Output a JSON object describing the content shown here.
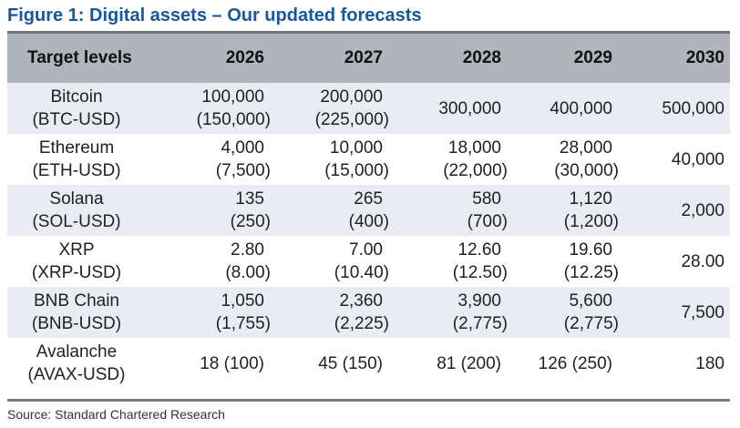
{
  "title": "Figure 1: Digital assets – Our updated forecasts",
  "source": "Source: Standard Chartered Research",
  "colors": {
    "title_blue": "#17579D",
    "header_bg": "#AFB5BB",
    "alt_row_bg": "#E9EDF3",
    "top_rule": "#6F747A",
    "bottom_rule": "#76797D"
  },
  "table": {
    "header": [
      "Target levels",
      "2026",
      "2027",
      "2028",
      "2029",
      "2030"
    ],
    "rows": [
      {
        "asset": "Bitcoin",
        "ticker": "(BTC-USD)",
        "cells": [
          {
            "main": "100,000",
            "sub": "(150,000)"
          },
          {
            "main": "200,000",
            "sub": "(225,000)"
          },
          {
            "main": "300,000"
          },
          {
            "main": "400,000"
          },
          {
            "main": "500,000"
          }
        ]
      },
      {
        "asset": "Ethereum",
        "ticker": "(ETH-USD)",
        "cells": [
          {
            "main": "4,000",
            "sub": "(7,500)"
          },
          {
            "main": "10,000",
            "sub": "(15,000)"
          },
          {
            "main": "18,000",
            "sub": "(22,000)"
          },
          {
            "main": "28,000",
            "sub": "(30,000)"
          },
          {
            "main": "40,000"
          }
        ]
      },
      {
        "asset": "Solana",
        "ticker": "(SOL-USD)",
        "cells": [
          {
            "main": "135",
            "sub": "(250)"
          },
          {
            "main": "265",
            "sub": "(400)"
          },
          {
            "main": "580",
            "sub": "(700)"
          },
          {
            "main": "1,120",
            "sub": "(1,200)"
          },
          {
            "main": "2,000"
          }
        ]
      },
      {
        "asset": "XRP",
        "ticker": "(XRP-USD)",
        "cells": [
          {
            "main": "2.80",
            "sub": "(8.00)"
          },
          {
            "main": "7.00",
            "sub": "(10.40)"
          },
          {
            "main": "12.60",
            "sub": "(12.50)"
          },
          {
            "main": "19.60",
            "sub": "(12.25)"
          },
          {
            "main": "28.00"
          }
        ]
      },
      {
        "asset": "BNB Chain",
        "ticker": "(BNB-USD)",
        "cells": [
          {
            "main": "1,050",
            "sub": "(1,755)"
          },
          {
            "main": "2,360",
            "sub": "(2,225)"
          },
          {
            "main": "3,900",
            "sub": "(2,775)"
          },
          {
            "main": "5,600",
            "sub": "(2,775)"
          },
          {
            "main": "7,500"
          }
        ]
      },
      {
        "asset": "Avalanche",
        "ticker": "(AVAX-USD)",
        "cells": [
          {
            "main": "18 (100)"
          },
          {
            "main": "45 (150)"
          },
          {
            "main": "81 (200)"
          },
          {
            "main": "126 (250)"
          },
          {
            "main": "180"
          }
        ]
      }
    ]
  }
}
